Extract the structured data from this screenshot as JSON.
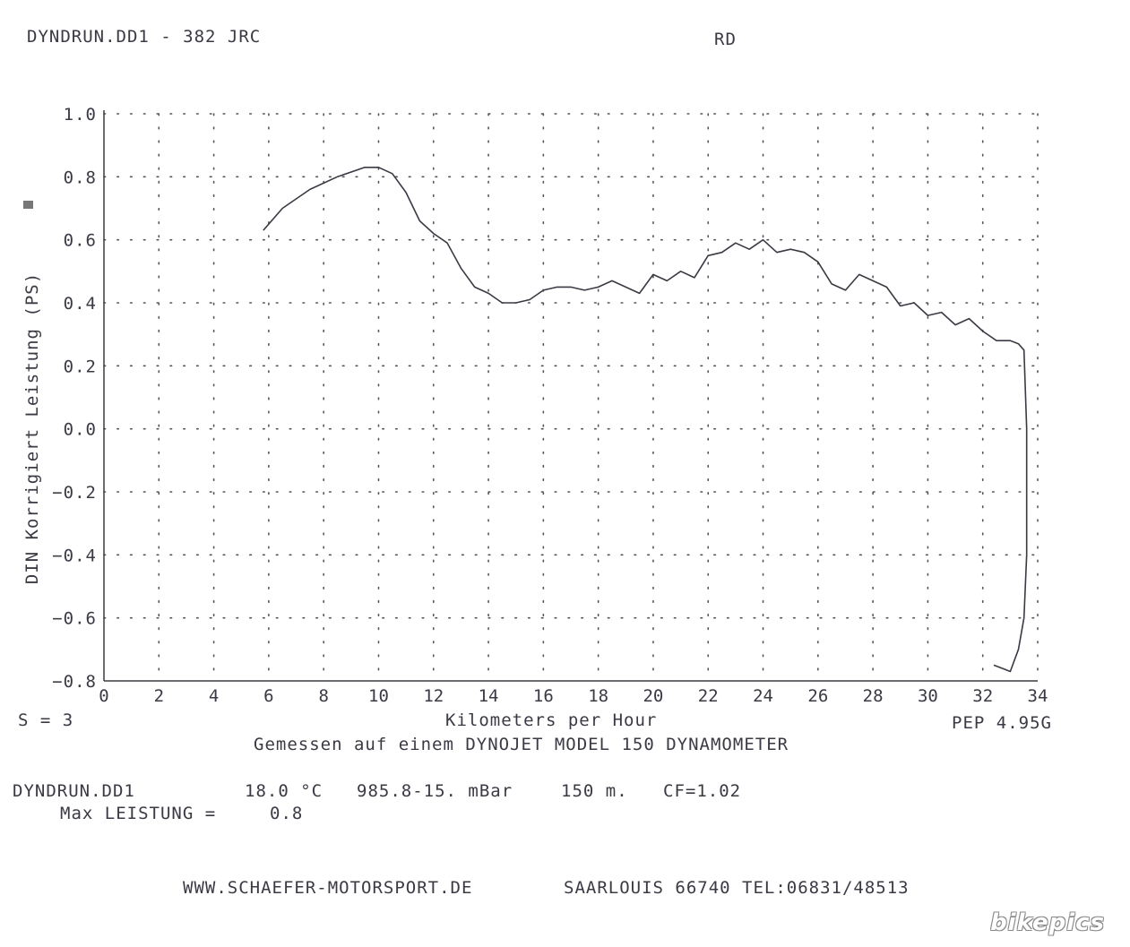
{
  "header": {
    "file_title": "DYNDRUN.DD1 - 382 JRC",
    "code": "RD"
  },
  "chart_data": {
    "type": "line",
    "title": "",
    "xlabel": "Kilometers per Hour",
    "ylabel": "DIN Korrigiert Leistung (PS)",
    "xlim": [
      0,
      34
    ],
    "ylim": [
      -0.8,
      1.0
    ],
    "x_ticks": [
      "0",
      "2",
      "4",
      "6",
      "8",
      "10",
      "12",
      "14",
      "16",
      "18",
      "20",
      "22",
      "24",
      "26",
      "28",
      "30",
      "32",
      "34"
    ],
    "y_ticks": [
      "1.0",
      "0.8",
      "0.6",
      "0.4",
      "0.2",
      "0.0",
      "−0.2",
      "−0.4",
      "−0.6",
      "−0.8"
    ],
    "grid": "dotted",
    "series": [
      {
        "x": [
          5.8,
          6.5,
          7.5,
          8.5,
          9.5,
          10.0,
          10.5,
          11.0,
          11.5,
          12.0,
          12.5,
          13.0,
          13.5,
          14.0,
          14.5,
          15.0,
          15.5,
          16.0,
          16.5,
          17.0,
          17.5,
          18.0,
          18.5,
          19.0,
          19.5,
          20.0,
          20.5,
          21.0,
          21.5,
          22.0,
          22.5,
          23.0,
          23.5,
          24.0,
          24.5,
          25.0,
          25.5,
          26.0,
          26.5,
          27.0,
          27.5,
          28.0,
          28.5,
          29.0,
          29.5,
          30.0,
          30.5,
          31.0,
          31.5,
          32.0,
          32.5,
          33.0,
          33.3,
          33.5,
          33.6,
          33.6,
          33.5,
          33.3,
          33.0,
          32.7,
          32.4
        ],
        "y": [
          0.63,
          0.7,
          0.76,
          0.8,
          0.83,
          0.83,
          0.81,
          0.75,
          0.66,
          0.62,
          0.59,
          0.51,
          0.45,
          0.43,
          0.4,
          0.4,
          0.41,
          0.44,
          0.45,
          0.45,
          0.44,
          0.45,
          0.47,
          0.45,
          0.43,
          0.49,
          0.47,
          0.5,
          0.48,
          0.55,
          0.56,
          0.59,
          0.57,
          0.6,
          0.56,
          0.57,
          0.56,
          0.53,
          0.46,
          0.44,
          0.49,
          0.47,
          0.45,
          0.39,
          0.4,
          0.36,
          0.37,
          0.33,
          0.35,
          0.31,
          0.28,
          0.28,
          0.27,
          0.25,
          0.0,
          -0.4,
          -0.6,
          -0.7,
          -0.77,
          -0.76,
          -0.75
        ]
      }
    ]
  },
  "left_note": "S = 3",
  "right_note": "PEP 4.95G",
  "measured_note": "Gemessen auf einem DYNOJET MODEL 150 DYNAMOMETER",
  "info": {
    "file": "DYNDRUN.DD1",
    "temp": "18.0 °C",
    "pressure": "985.8-15. mBar",
    "altitude": "150 m.",
    "cf": "CF=1.02",
    "max_label": "Max LEISTUNG =",
    "max_value": "0.8"
  },
  "footer": {
    "website": "WWW.SCHAEFER-MOTORSPORT.DE",
    "address": "SAARLOUIS 66740 TEL:06831/48513"
  },
  "watermark": "bikepics",
  "colors": {
    "ink": "#3a3a44",
    "grid": "#555555",
    "paper": "#ffffff"
  }
}
